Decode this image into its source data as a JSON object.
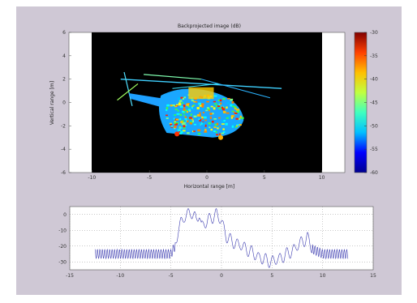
{
  "colors": {
    "figure_bg": "#cfc8d5",
    "axes_bg": "#ffffff",
    "image_bg": "#000000",
    "line": "#3b3bb0",
    "grid": "#777777"
  },
  "chart_data": [
    {
      "type": "heatmap",
      "title": "Backprojected image (dB)",
      "xlabel": "Horizontal range [m]",
      "ylabel": "Vertical range [m]",
      "xlim": [
        -12,
        12
      ],
      "ylim": [
        -6,
        6
      ],
      "xticks": [
        "-10",
        "-5",
        "0",
        "5",
        "10"
      ],
      "yticks": [
        "6",
        "4",
        "2",
        "0",
        "-2",
        "-4",
        "-6"
      ],
      "image_extent": {
        "x": [
          -10,
          10
        ],
        "y": [
          -6,
          6
        ]
      },
      "subject": "helicopter",
      "colorbar": {
        "range": [
          -60,
          -30
        ],
        "ticks": [
          "-30",
          "-35",
          "-40",
          "-45",
          "-50",
          "-55",
          "-60"
        ],
        "colors": [
          "#00008f",
          "#0000ff",
          "#00bfff",
          "#40ffbf",
          "#c0ff40",
          "#ffbf00",
          "#ff4000",
          "#800000"
        ]
      }
    },
    {
      "type": "line",
      "xlim": [
        -15,
        15
      ],
      "ylim": [
        -35,
        5
      ],
      "xticks": [
        "-15",
        "-10",
        "-5",
        "0",
        "5",
        "10",
        "15"
      ],
      "yticks": [
        "0",
        "-10",
        "-20",
        "-30"
      ],
      "grid": "dotted",
      "series": [
        {
          "x": [
            -12.5,
            -11,
            -9,
            -7,
            -5,
            -4.6,
            -4.3,
            -4,
            -3.5,
            -3,
            -2.5,
            -2.2,
            -2,
            -1.5,
            -1,
            -0.5,
            0,
            0.5,
            1,
            2,
            3,
            4,
            5,
            6,
            7,
            8,
            8.5,
            9,
            10,
            11,
            12.5
          ],
          "y": [
            -25,
            -25,
            -25,
            -25,
            -25,
            -20,
            -10,
            -5,
            -1,
            2,
            -4,
            1,
            -7,
            -5,
            -2,
            0,
            -4,
            -14,
            -17,
            -20,
            -24,
            -28,
            -30,
            -27,
            -23,
            -17,
            -15,
            -22,
            -25,
            -25,
            -25
          ]
        }
      ]
    }
  ]
}
